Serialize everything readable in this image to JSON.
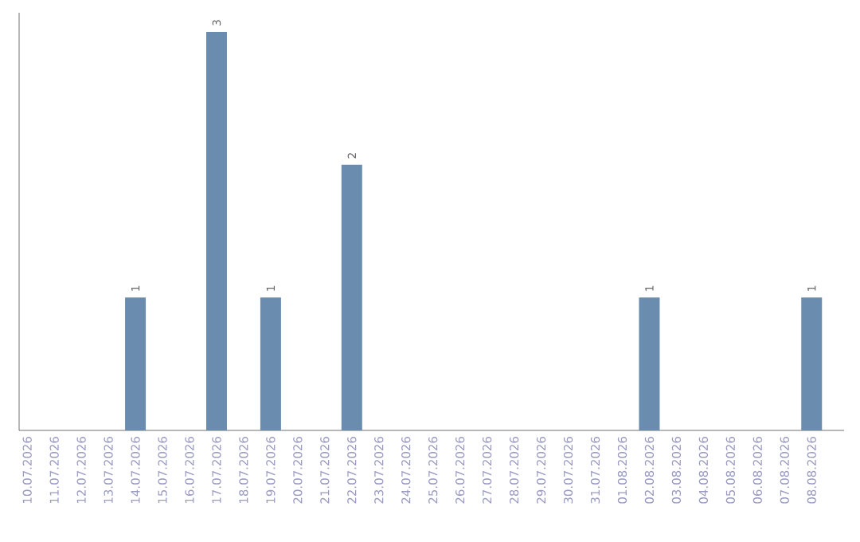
{
  "chart_data": {
    "type": "bar",
    "categories": [
      "10.07.2026",
      "11.07.2026",
      "12.07.2026",
      "13.07.2026",
      "14.07.2026",
      "15.07.2026",
      "16.07.2026",
      "17.07.2026",
      "18.07.2026",
      "19.07.2026",
      "20.07.2026",
      "21.07.2026",
      "22.07.2026",
      "23.07.2026",
      "24.07.2026",
      "25.07.2026",
      "26.07.2026",
      "27.07.2026",
      "28.07.2026",
      "29.07.2026",
      "30.07.2026",
      "31.07.2026",
      "01.08.2026",
      "02.08.2026",
      "03.08.2026",
      "04.08.2026",
      "05.08.2026",
      "06.08.2026",
      "07.08.2026",
      "08.08.2026"
    ],
    "values": [
      0,
      0,
      0,
      0,
      1,
      0,
      0,
      3,
      0,
      1,
      0,
      0,
      2,
      0,
      0,
      0,
      0,
      0,
      0,
      0,
      0,
      0,
      0,
      1,
      0,
      0,
      0,
      0,
      0,
      1
    ],
    "value_labels": [
      null,
      null,
      null,
      null,
      "1",
      null,
      null,
      "3",
      null,
      "1",
      null,
      null,
      "2",
      null,
      null,
      null,
      null,
      null,
      null,
      null,
      null,
      null,
      null,
      "1",
      null,
      null,
      null,
      null,
      null,
      "1"
    ],
    "color": "#6a8caf"
  }
}
